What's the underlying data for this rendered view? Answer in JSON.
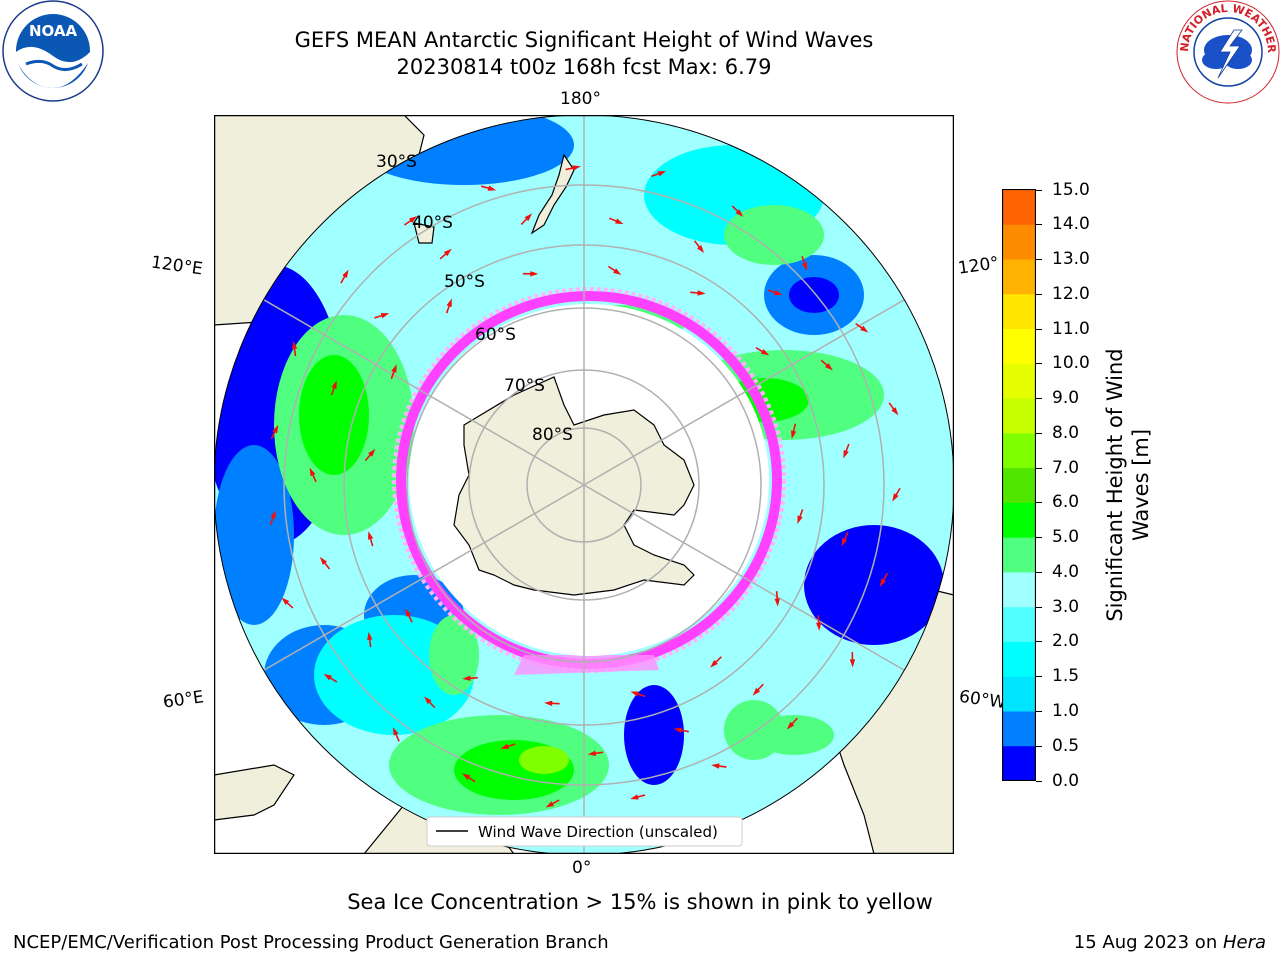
{
  "title": {
    "line1": "GEFS MEAN Antarctic Significant Height of Wind Waves",
    "line2": "20230814 t00z 168h fcst   Max: 6.79"
  },
  "map": {
    "longitude_labels": {
      "top": "180°",
      "bottom": "0°",
      "upper_left": "120°E",
      "upper_right": "120°",
      "lower_left": "60°E",
      "lower_right": "60°W"
    },
    "latitude_labels": [
      "30°S",
      "40°S",
      "50°S",
      "60°S",
      "70°S",
      "80°S"
    ],
    "legend_label": "Wind Wave Direction (unscaled)"
  },
  "colorbar": {
    "label_line1": "Significant Height of Wind",
    "label_line2": "Waves [m]",
    "ticks": [
      "15.0",
      "14.0",
      "13.0",
      "12.0",
      "11.0",
      "10.0",
      "9.0",
      "8.0",
      "7.0",
      "6.0",
      "5.0",
      "4.0",
      "3.0",
      "2.0",
      "1.5",
      "1.0",
      "0.5",
      "0.0"
    ],
    "colors": [
      "#0000ff",
      "#0080ff",
      "#00e5ff",
      "#00ffff",
      "#50ffff",
      "#a0ffff",
      "#50ff80",
      "#00ff00",
      "#50e600",
      "#80ff00",
      "#c8ff00",
      "#e6ff00",
      "#ffff00",
      "#ffe600",
      "#ffb300",
      "#ff8c00",
      "#ff6400",
      "#ff3200",
      "#ff0000"
    ]
  },
  "note": "Sea Ice Concentration > 15% is shown in pink to yellow",
  "footer": {
    "left": "NCEP/EMC/Verification Post Processing Product Generation Branch",
    "right_date": "15 Aug 2023 on ",
    "right_machine": "Hera"
  },
  "logos": {
    "left": "NOAA",
    "right_text": "NATIONAL WEATHER SERVICE"
  }
}
